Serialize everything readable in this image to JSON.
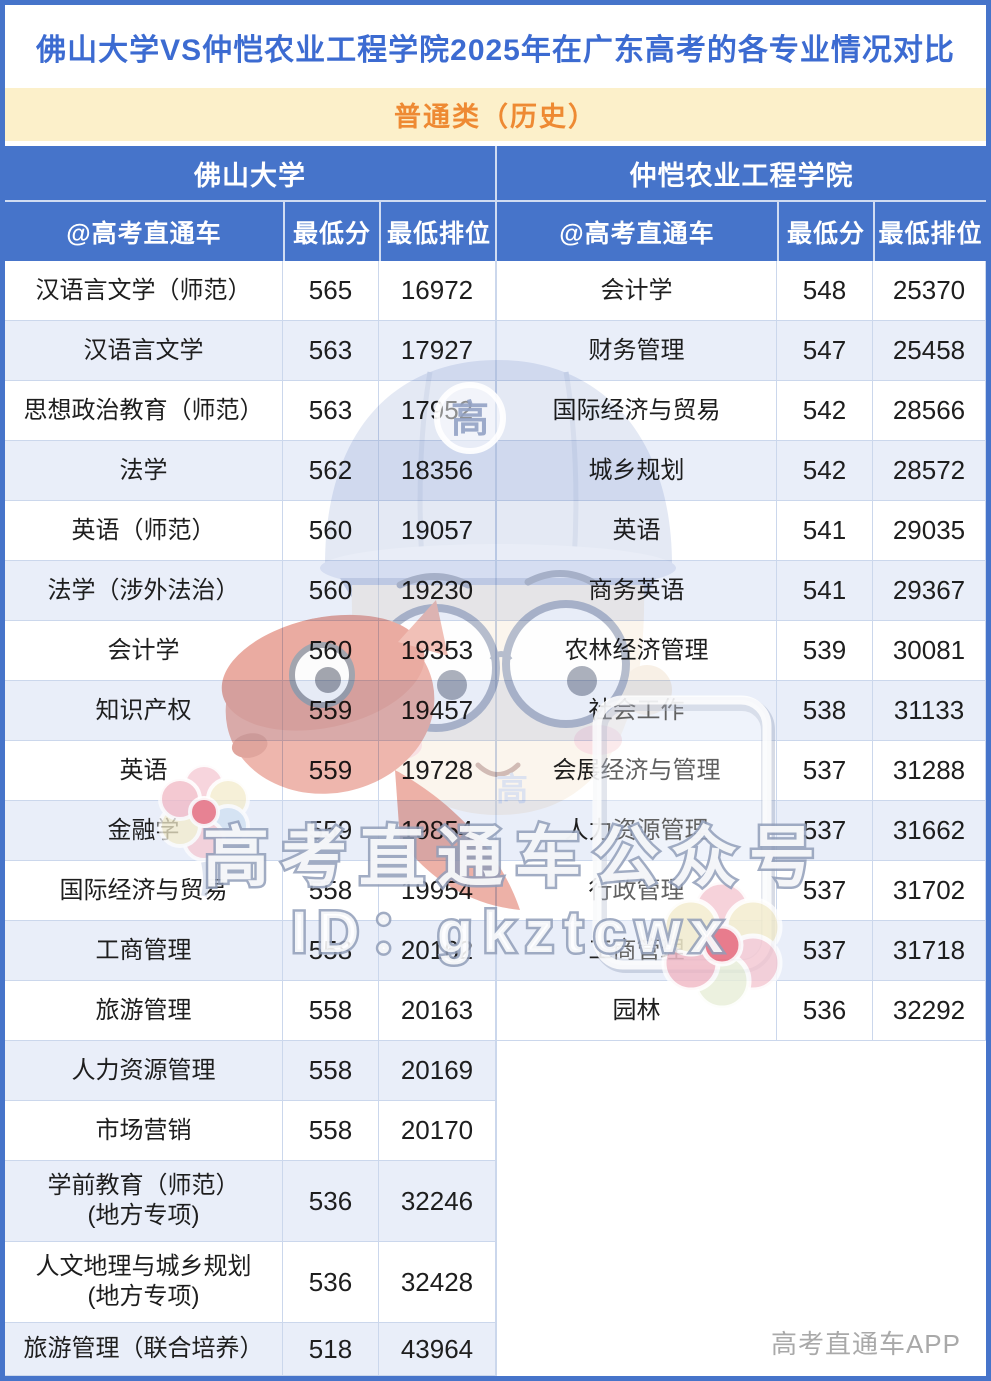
{
  "title": "佛山大学VS仲恺农业工程学院2025年在广东高考的各专业情况对比",
  "category_banner": "普通类（历史）",
  "columns": {
    "account": "@高考直通车",
    "min_score": "最低分",
    "min_rank": "最低排位"
  },
  "left_table": {
    "university": "佛山大学",
    "rows": [
      {
        "major": "汉语言文学（师范）",
        "min_score": "565",
        "min_rank": "16972"
      },
      {
        "major": "汉语言文学",
        "min_score": "563",
        "min_rank": "17927"
      },
      {
        "major": "思想政治教育（师范）",
        "min_score": "563",
        "min_rank": "17952"
      },
      {
        "major": "法学",
        "min_score": "562",
        "min_rank": "18356"
      },
      {
        "major": "英语（师范）",
        "min_score": "560",
        "min_rank": "19057"
      },
      {
        "major": "法学（涉外法治）",
        "min_score": "560",
        "min_rank": "19230"
      },
      {
        "major": "会计学",
        "min_score": "560",
        "min_rank": "19353"
      },
      {
        "major": "知识产权",
        "min_score": "559",
        "min_rank": "19457"
      },
      {
        "major": "英语",
        "min_score": "559",
        "min_rank": "19728"
      },
      {
        "major": "金融学",
        "min_score": "559",
        "min_rank": "19854"
      },
      {
        "major": "国际经济与贸易",
        "min_score": "558",
        "min_rank": "19954"
      },
      {
        "major": "工商管理",
        "min_score": "558",
        "min_rank": "20162"
      },
      {
        "major": "旅游管理",
        "min_score": "558",
        "min_rank": "20163"
      },
      {
        "major": "人力资源管理",
        "min_score": "558",
        "min_rank": "20169"
      },
      {
        "major": "市场营销",
        "min_score": "558",
        "min_rank": "20170"
      },
      {
        "major": "学前教育（师范）\n(地方专项)",
        "min_score": "536",
        "min_rank": "32246"
      },
      {
        "major": "人文地理与城乡规划\n(地方专项)",
        "min_score": "536",
        "min_rank": "32428"
      },
      {
        "major": "旅游管理（联合培养）",
        "min_score": "518",
        "min_rank": "43964"
      }
    ]
  },
  "right_table": {
    "university": "仲恺农业工程学院",
    "rows": [
      {
        "major": "会计学",
        "min_score": "548",
        "min_rank": "25370"
      },
      {
        "major": "财务管理",
        "min_score": "547",
        "min_rank": "25458"
      },
      {
        "major": "国际经济与贸易",
        "min_score": "542",
        "min_rank": "28566"
      },
      {
        "major": "城乡规划",
        "min_score": "542",
        "min_rank": "28572"
      },
      {
        "major": "英语",
        "min_score": "541",
        "min_rank": "29035"
      },
      {
        "major": "商务英语",
        "min_score": "541",
        "min_rank": "29367"
      },
      {
        "major": "农林经济管理",
        "min_score": "539",
        "min_rank": "30081"
      },
      {
        "major": "社会工作",
        "min_score": "538",
        "min_rank": "31133"
      },
      {
        "major": "会展经济与管理",
        "min_score": "537",
        "min_rank": "31288"
      },
      {
        "major": "人力资源管理",
        "min_score": "537",
        "min_rank": "31662"
      },
      {
        "major": "行政管理",
        "min_score": "537",
        "min_rank": "31702"
      },
      {
        "major": "工商管理",
        "min_score": "537",
        "min_rank": "31718"
      },
      {
        "major": "园林",
        "min_score": "536",
        "min_rank": "32292"
      }
    ]
  },
  "watermark": {
    "line1": "高考直通车公众号",
    "line2": "ID：gkztcwx",
    "cap_badge": "高",
    "chest_badge": "高",
    "footer": "高考直通车APP"
  },
  "colors": {
    "header_blue": "#4674CA",
    "title_text": "#3C6BD1",
    "banner_bg": "#FCF0CA",
    "banner_text": "#EE8A33",
    "row_alt": "#E9EEF9",
    "grid_line": "#CBD7EC",
    "text_dark": "#1E1E1E",
    "footer_gray": "#A9A9A9"
  }
}
